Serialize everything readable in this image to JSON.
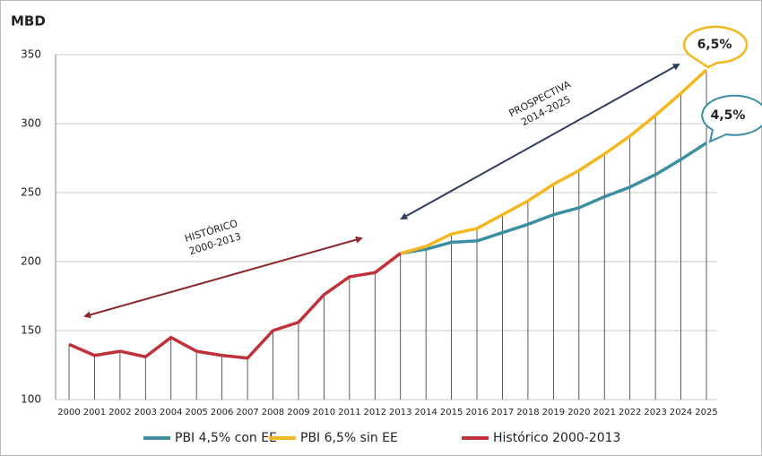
{
  "chart_data": {
    "type": "line",
    "y_label": "MBD",
    "categories": [
      "2000",
      "2001",
      "2002",
      "2003",
      "2004",
      "2005",
      "2006",
      "2007",
      "2008",
      "2009",
      "2010",
      "2011",
      "2012",
      "2013",
      "2014",
      "2015",
      "2016",
      "2017",
      "2018",
      "2019",
      "2020",
      "2021",
      "2022",
      "2023",
      "2024",
      "2025"
    ],
    "series": [
      {
        "name": "PBI 4,5% con EE",
        "color": "#3b8fa1",
        "values": [
          null,
          null,
          null,
          null,
          null,
          null,
          null,
          null,
          null,
          null,
          null,
          null,
          null,
          206,
          209,
          214,
          215,
          221,
          227,
          234,
          239,
          247,
          254,
          263,
          274,
          286
        ]
      },
      {
        "name": "PBI 6,5% sin EE",
        "color": "#f4b71f",
        "values": [
          null,
          null,
          null,
          null,
          null,
          null,
          null,
          null,
          null,
          null,
          null,
          null,
          null,
          206,
          211,
          220,
          224,
          234,
          244,
          256,
          266,
          278,
          291,
          306,
          322,
          339
        ]
      },
      {
        "name": "Histórico 2000-2013",
        "color": "#c0313a",
        "values": [
          140,
          132,
          135,
          131,
          145,
          135,
          132,
          130,
          150,
          156,
          176,
          189,
          192,
          206,
          null,
          null,
          null,
          null,
          null,
          null,
          null,
          null,
          null,
          null,
          null,
          null
        ]
      }
    ],
    "ylim": [
      100,
      350
    ],
    "yticks": [
      100,
      150,
      200,
      250,
      300,
      350
    ],
    "grid": true,
    "annotations": {
      "historico": [
        "HISTÓRICO",
        "2000-2013"
      ],
      "prospectiva": [
        "PROSPECTIVA",
        "2014-2025"
      ],
      "callout_high": "6,5%",
      "callout_low": "4,5%"
    }
  }
}
